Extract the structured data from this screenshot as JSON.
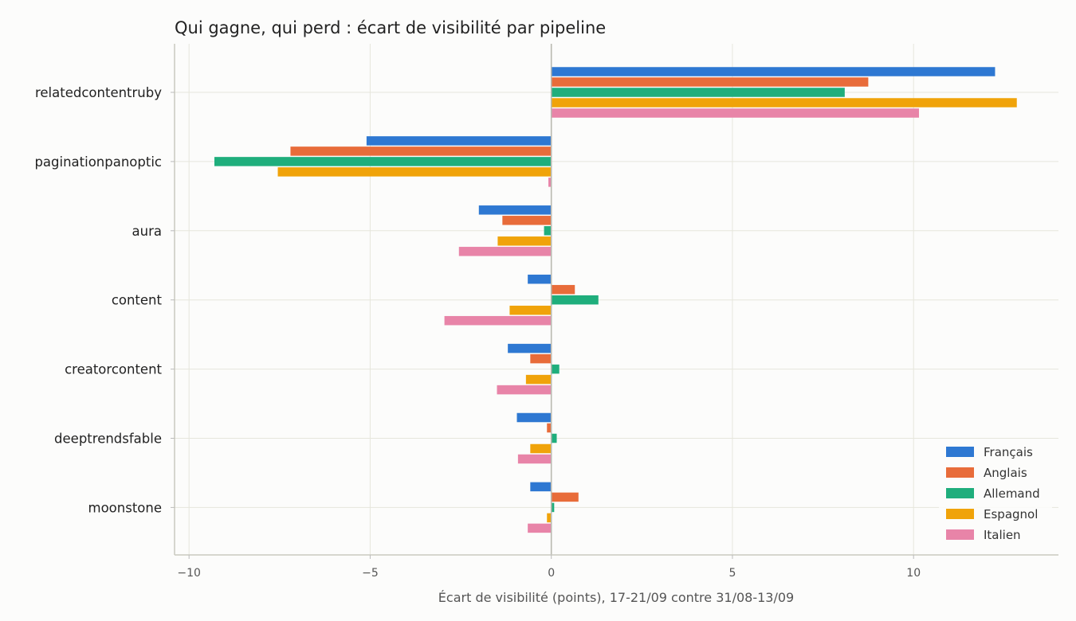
{
  "chart_data": {
    "type": "bar",
    "orientation": "horizontal",
    "title": "Qui gagne, qui perd : écart de visibilité par pipeline",
    "xlabel": "Écart de visibilité (points), 17-21/09 contre 31/08-13/09",
    "ylabel": "",
    "xlim": [
      -10.4,
      14
    ],
    "xticks": [
      -10,
      -5,
      0,
      5,
      10
    ],
    "xtick_labels": [
      "−10",
      "−5",
      "0",
      "5",
      "10"
    ],
    "grid": true,
    "legend_position": "bottom-right",
    "categories": [
      "relatedcontentruby",
      "paginationpanoptic",
      "aura",
      "content",
      "creatorcontent",
      "deeptrendsfable",
      "moonstone"
    ],
    "series": [
      {
        "name": "Français",
        "color": "#2e78d2",
        "values": [
          12.25,
          -5.1,
          -2.0,
          -0.65,
          -1.2,
          -0.95,
          -0.58
        ]
      },
      {
        "name": "Anglais",
        "color": "#e86c3a",
        "values": [
          8.75,
          -7.2,
          -1.35,
          0.65,
          -0.58,
          -0.12,
          0.75
        ]
      },
      {
        "name": "Allemand",
        "color": "#1fae7c",
        "values": [
          8.1,
          -9.3,
          -0.2,
          1.3,
          0.22,
          0.15,
          0.08
        ]
      },
      {
        "name": "Espagnol",
        "color": "#f0a30a",
        "values": [
          12.85,
          -7.55,
          -1.48,
          -1.15,
          -0.7,
          -0.58,
          -0.12
        ]
      },
      {
        "name": "Italien",
        "color": "#e884a8",
        "values": [
          10.15,
          -0.08,
          -2.55,
          -2.95,
          -1.5,
          -0.92,
          -0.65
        ]
      }
    ]
  }
}
